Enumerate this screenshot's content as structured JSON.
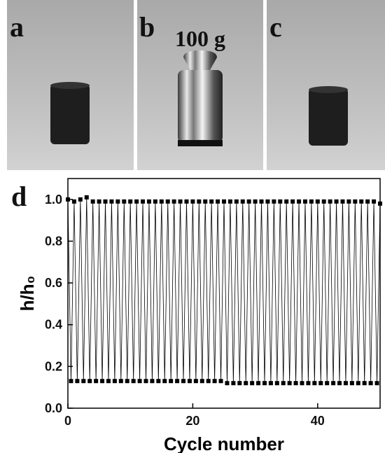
{
  "photo_labels": [
    "a",
    "b",
    "c"
  ],
  "weight_label": "100 g",
  "chart_label": "d",
  "chart_data": {
    "type": "line",
    "x_label": "Cycle number",
    "y_label": "h/h₀",
    "x": [
      0,
      0.5,
      1,
      1.5,
      2,
      2.5,
      3,
      3.5,
      4,
      4.5,
      5,
      5.5,
      6,
      6.5,
      7,
      7.5,
      8,
      8.5,
      9,
      9.5,
      10,
      10.5,
      11,
      11.5,
      12,
      12.5,
      13,
      13.5,
      14,
      14.5,
      15,
      15.5,
      16,
      16.5,
      17,
      17.5,
      18,
      18.5,
      19,
      19.5,
      20,
      20.5,
      21,
      21.5,
      22,
      22.5,
      23,
      23.5,
      24,
      24.5,
      25,
      25.5,
      26,
      26.5,
      27,
      27.5,
      28,
      28.5,
      29,
      29.5,
      30,
      30.5,
      31,
      31.5,
      32,
      32.5,
      33,
      33.5,
      34,
      34.5,
      35,
      35.5,
      36,
      36.5,
      37,
      37.5,
      38,
      38.5,
      39,
      39.5,
      40,
      40.5,
      41,
      41.5,
      42,
      42.5,
      43,
      43.5,
      44,
      44.5,
      45,
      45.5,
      46,
      46.5,
      47,
      47.5,
      48,
      48.5,
      49,
      49.5,
      50
    ],
    "values": [
      1.0,
      0.13,
      0.99,
      0.13,
      1.0,
      0.13,
      1.01,
      0.13,
      0.99,
      0.13,
      0.99,
      0.13,
      0.99,
      0.13,
      0.99,
      0.13,
      0.99,
      0.13,
      0.99,
      0.13,
      0.99,
      0.13,
      0.99,
      0.13,
      0.99,
      0.13,
      0.99,
      0.13,
      0.99,
      0.13,
      0.99,
      0.13,
      0.99,
      0.13,
      0.99,
      0.13,
      0.99,
      0.13,
      0.99,
      0.13,
      0.99,
      0.13,
      0.99,
      0.13,
      0.99,
      0.13,
      0.99,
      0.13,
      0.99,
      0.13,
      0.99,
      0.12,
      0.99,
      0.12,
      0.99,
      0.12,
      0.99,
      0.12,
      0.99,
      0.12,
      0.99,
      0.12,
      0.99,
      0.12,
      0.99,
      0.12,
      0.99,
      0.12,
      0.99,
      0.12,
      0.99,
      0.12,
      0.99,
      0.12,
      0.99,
      0.12,
      0.99,
      0.12,
      0.99,
      0.12,
      0.99,
      0.12,
      0.99,
      0.12,
      0.99,
      0.12,
      0.99,
      0.12,
      0.99,
      0.12,
      0.99,
      0.12,
      0.99,
      0.12,
      0.99,
      0.12,
      0.99,
      0.12,
      0.99,
      0.12,
      0.98
    ],
    "color": "#000000",
    "xlim": [
      0,
      50
    ],
    "xticks": [
      0,
      20,
      40
    ],
    "ylim": [
      0,
      1.1
    ],
    "yticks": [
      {
        "value": 0,
        "label": "0.0"
      },
      0.2,
      0.4,
      0.6,
      0.8,
      {
        "value": 1,
        "label": "1.0"
      }
    ]
  }
}
